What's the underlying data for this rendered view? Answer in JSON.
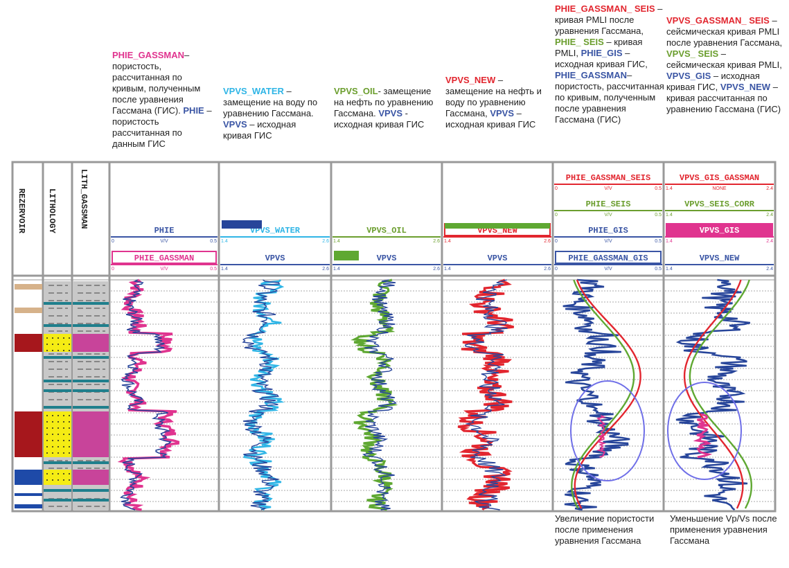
{
  "descriptions": [
    {
      "id": "phie",
      "parts": [
        {
          "t": "PHIE_GASSMAN",
          "c": "#e0348f",
          "b": true
        },
        {
          "t": "– пористость, рассчитанная по кривым, полученным после уравнения Гассмана (ГИС). ",
          "c": "#222",
          "b": false
        },
        {
          "t": "PHIE",
          "c": "#3a55a4",
          "b": true
        },
        {
          "t": " – пористость рассчитанная по данным ГИС",
          "c": "#222",
          "b": false
        }
      ]
    },
    {
      "id": "water",
      "parts": [
        {
          "t": "VPVS_WATER",
          "c": "#2fb5e6",
          "b": true
        },
        {
          "t": " – замещение на воду по уравнению Гассмана. ",
          "c": "#222",
          "b": false
        },
        {
          "t": "VPVS",
          "c": "#3a55a4",
          "b": true
        },
        {
          "t": " – исходная кривая ГИС",
          "c": "#222",
          "b": false
        }
      ]
    },
    {
      "id": "oil",
      "parts": [
        {
          "t": "VPVS_OIL",
          "c": "#6b9e2e",
          "b": true
        },
        {
          "t": "- замещение на нефть по уравнению Гассмана. ",
          "c": "#222",
          "b": false
        },
        {
          "t": "VPVS",
          "c": "#3a55a4",
          "b": true
        },
        {
          "t": " - исходная кривая ГИС",
          "c": "#222",
          "b": false
        }
      ]
    },
    {
      "id": "new",
      "parts": [
        {
          "t": "VPVS_NEW",
          "c": "#e2262f",
          "b": true
        },
        {
          "t": " – замещение на нефть и воду по уравнению Гассмана, ",
          "c": "#222",
          "b": false
        },
        {
          "t": "VPVS",
          "c": "#3a55a4",
          "b": true
        },
        {
          "t": " – исходная кривая ГИС",
          "c": "#222",
          "b": false
        }
      ]
    },
    {
      "id": "seis1",
      "parts": [
        {
          "t": "PHIE_GASSMAN_ SEIS",
          "c": "#e2262f",
          "b": true
        },
        {
          "t": " – кривая PMLI после уравнения Гассмана, ",
          "c": "#222",
          "b": false
        },
        {
          "t": "PHIE_ SEIS",
          "c": "#6b9e2e",
          "b": true
        },
        {
          "t": " – кривая PMLI, ",
          "c": "#222",
          "b": false
        },
        {
          "t": "PHIE_GIS",
          "c": "#3a55a4",
          "b": true
        },
        {
          "t": " – исходная кривая ГИС, ",
          "c": "#222",
          "b": false
        },
        {
          "t": "PHIE_GASSMAN",
          "c": "#3a55a4",
          "b": true
        },
        {
          "t": "– пористость, рассчитанная по кривым, полученным после уравнения Гассмана (ГИС)",
          "c": "#222",
          "b": false
        }
      ]
    },
    {
      "id": "seis2",
      "parts": [
        {
          "t": "VPVS_GASSMAN_ SEIS",
          "c": "#e2262f",
          "b": true
        },
        {
          "t": " – сейсмическая кривая PMLI после уравнения Гассмана, ",
          "c": "#222",
          "b": false
        },
        {
          "t": "VPVS_ SEIS",
          "c": "#6b9e2e",
          "b": true
        },
        {
          "t": " – сейсмическая кривая PMLI, ",
          "c": "#222",
          "b": false
        },
        {
          "t": "VPVS_GIS",
          "c": "#3a55a4",
          "b": true
        },
        {
          "t": " – исходная кривая ГИС, ",
          "c": "#222",
          "b": false
        },
        {
          "t": "VPVS_NEW",
          "c": "#3a55a4",
          "b": true
        },
        {
          "t": " – кривая рассчитанная по уравнению Гассмана (ГИС)",
          "c": "#222",
          "b": false
        }
      ]
    }
  ],
  "tracks": {
    "rezervoir": "REZERVOIR",
    "lithology": "LITHOLOGY",
    "lith_gassman": "LITH_GASSMAN"
  },
  "headers": {
    "t4": [
      {
        "name": "PHIE",
        "color": "#3a55a4",
        "scale": [
          "0",
          "V/V",
          "0.5"
        ]
      },
      {
        "name": "PHIE_GASSMAN",
        "color": "#e0348f",
        "scale": [
          "0",
          "V/V",
          "0.5"
        ]
      }
    ],
    "t5": [
      {
        "name": "VPVS_WATER",
        "color": "#2fb5e6",
        "scale": [
          "1.4",
          "",
          "2.6"
        ]
      },
      {
        "name": "VPVS",
        "color": "#3a55a4",
        "scale": [
          "1.4",
          "",
          "2.6"
        ]
      }
    ],
    "t6": [
      {
        "name": "VPVS_OIL",
        "color": "#6b9e2e",
        "scale": [
          "1.4",
          "",
          "2.6"
        ]
      },
      {
        "name": "VPVS",
        "color": "#3a55a4",
        "scale": [
          "1.4",
          "",
          "2.6"
        ]
      }
    ],
    "t7": [
      {
        "name": "VPVS_NEW",
        "color": "#e2262f",
        "scale": [
          "1.4",
          "",
          "2.6"
        ]
      },
      {
        "name": "VPVS",
        "color": "#3a55a4",
        "scale": [
          "1.4",
          "",
          "2.6"
        ]
      }
    ],
    "t8": [
      {
        "name": "PHIE_GASSMAN_SEIS",
        "color": "#e2262f",
        "scale": [
          "0",
          "V/V",
          "0.5"
        ]
      },
      {
        "name": "PHIE_SEIS",
        "color": "#6b9e2e",
        "scale": [
          "0",
          "V/V",
          "0.5"
        ]
      },
      {
        "name": "PHIE_GIS",
        "color": "#3a55a4",
        "scale": [
          "0",
          "V/V",
          "0.5"
        ]
      },
      {
        "name": "PHIE_GASSMAN_GIS",
        "color": "#3a55a4",
        "scale": [
          "0",
          "V/V",
          "0.5"
        ]
      }
    ],
    "t9": [
      {
        "name": "VPVS_GIS_GASSMAN",
        "color": "#e2262f",
        "scale": [
          "1.4",
          "NONE",
          "2.4"
        ]
      },
      {
        "name": "VPVS_SEIS_CORR",
        "color": "#6b9e2e",
        "scale": [
          "1.4",
          "",
          "2.4"
        ]
      },
      {
        "name": "VPVS_GIS",
        "color": "#e0348f",
        "scale": [
          "1.4",
          "",
          "2.4"
        ]
      },
      {
        "name": "VPVS_NEW",
        "color": "#3a55a4",
        "scale": [
          "1.4",
          "",
          "2.4"
        ]
      }
    ]
  },
  "captions": {
    "left": "Увеличение пористости после применения уравнения Гассмана",
    "right": "Уменьшение Vp/Vs после применения уравнения Гассмана"
  },
  "colors": {
    "frame": "#999999",
    "blue": "#27459a",
    "pink": "#e0348f",
    "lightblue": "#2fb5e6",
    "green": "#5fa832",
    "red": "#e2262f",
    "ellipse": "#6f6fe8",
    "reservoir_red": "#a6171c",
    "reservoir_blue": "#1e4aa8",
    "sand": "#f5ec14",
    "shale": "#c8c8c8",
    "gassman_pink": "#c8449a"
  }
}
